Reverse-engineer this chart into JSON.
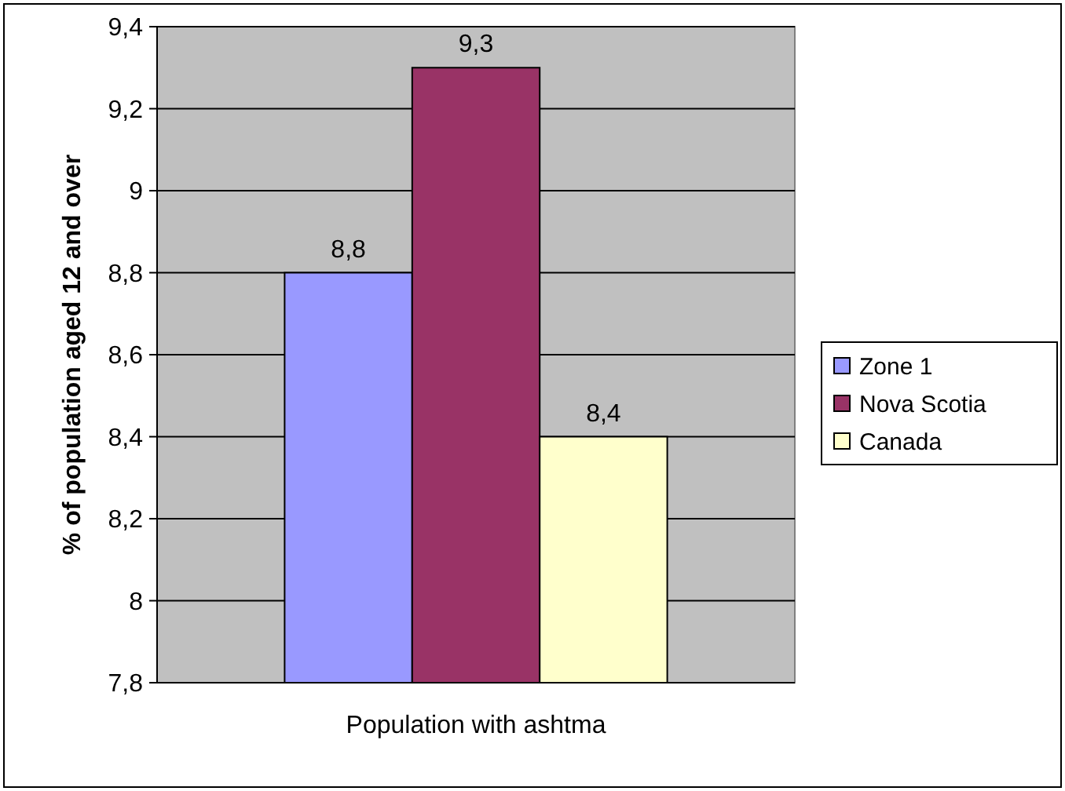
{
  "chart_data": {
    "type": "bar",
    "ylabel": "% of population aged 12 and over",
    "categories": [
      "Population with ashtma"
    ],
    "series": [
      {
        "name": "Zone 1",
        "color": "#9999ff",
        "values": [
          8.8
        ],
        "value_labels": [
          "8,8"
        ]
      },
      {
        "name": "Nova Scotia",
        "color": "#993366",
        "values": [
          9.3
        ],
        "value_labels": [
          "9,3"
        ]
      },
      {
        "name": "Canada",
        "color": "#ffffcc",
        "values": [
          8.4
        ],
        "value_labels": [
          "8,4"
        ]
      }
    ],
    "ylim": [
      7.8,
      9.4
    ],
    "yticks": [
      {
        "value": 7.8,
        "label": "7,8"
      },
      {
        "value": 8,
        "label": "8"
      },
      {
        "value": 8.2,
        "label": "8,2"
      },
      {
        "value": 8.4,
        "label": "8,4"
      },
      {
        "value": 8.6,
        "label": "8,6"
      },
      {
        "value": 8.8,
        "label": "8,8"
      },
      {
        "value": 9,
        "label": "9"
      },
      {
        "value": 9.2,
        "label": "9,2"
      },
      {
        "value": 9.4,
        "label": "9,4"
      }
    ],
    "grid": "y",
    "legend": "right"
  }
}
